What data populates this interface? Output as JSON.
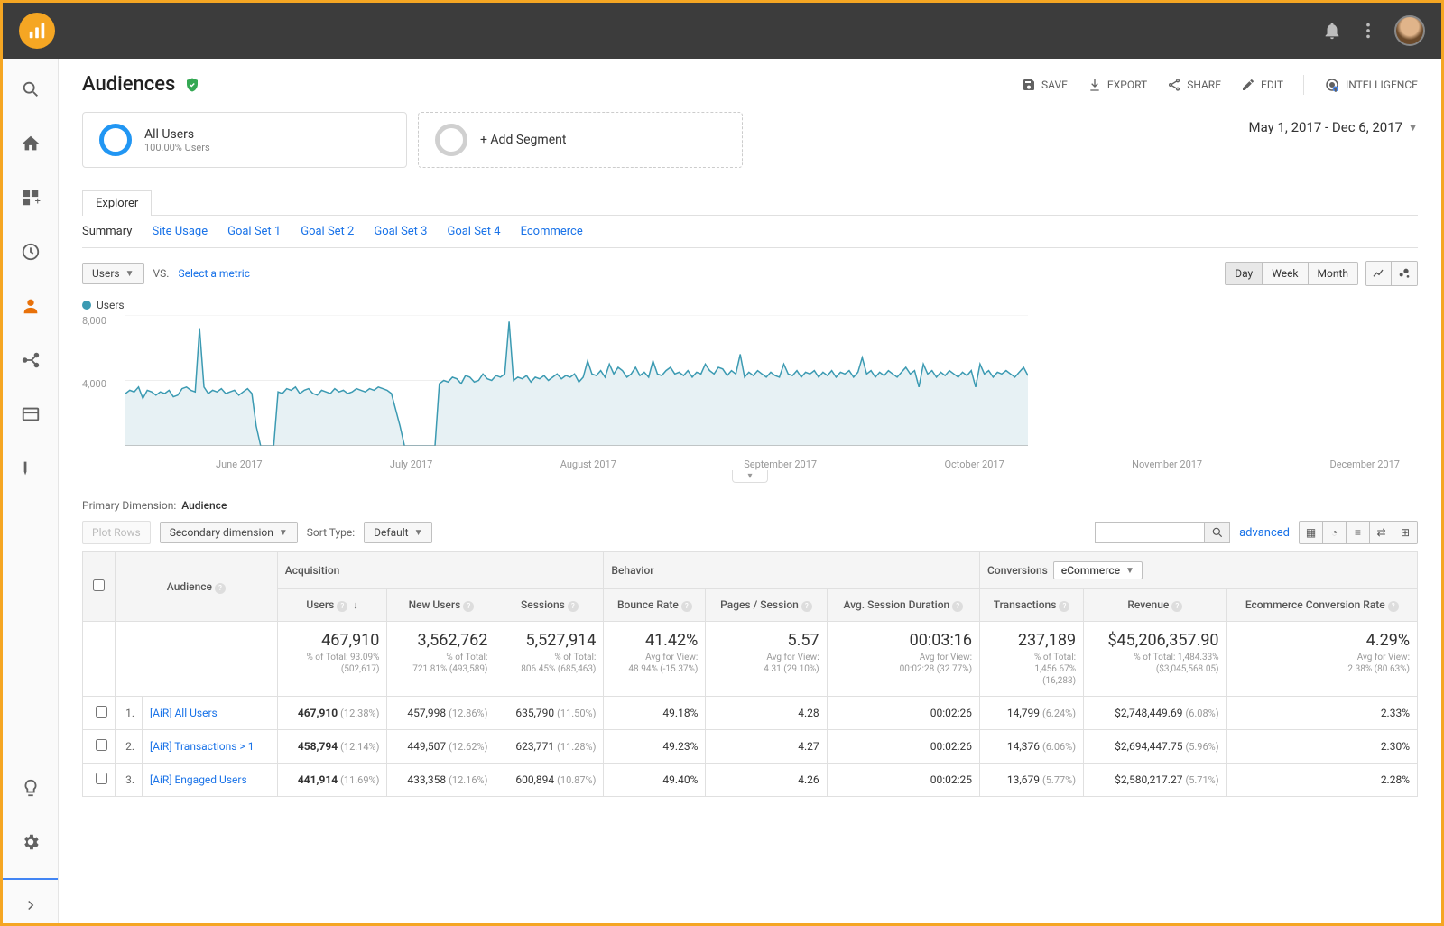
{
  "topbar": {
    "notifications_icon": "bell-icon",
    "menu_icon": "kebab-icon",
    "avatar": "user-avatar"
  },
  "page": {
    "title": "Audiences",
    "date_range": "May 1, 2017 - Dec 6, 2017"
  },
  "actions": {
    "save": "SAVE",
    "export": "EXPORT",
    "share": "SHARE",
    "edit": "EDIT",
    "intelligence": "INTELLIGENCE"
  },
  "segments": {
    "primary": {
      "title": "All Users",
      "sub": "100.00% Users"
    },
    "add": "+ Add Segment"
  },
  "tabs": {
    "explorer": "Explorer"
  },
  "subtabs": [
    "Summary",
    "Site Usage",
    "Goal Set 1",
    "Goal Set 2",
    "Goal Set 3",
    "Goal Set 4",
    "Ecommerce"
  ],
  "metric_bar": {
    "primary_metric": "Users",
    "vs": "VS.",
    "select_metric": "Select a metric",
    "periods": [
      "Day",
      "Week",
      "Month"
    ]
  },
  "chart": {
    "legend": "Users",
    "color": "#3b9ab2",
    "fill": "#e7f1f4",
    "y_ticks": [
      "8,000",
      "4,000"
    ],
    "y_max": 8000,
    "x_labels": [
      "June 2017",
      "July 2017",
      "August 2017",
      "September 2017",
      "October 2017",
      "November 2017",
      "December 2017"
    ],
    "values": [
      3200,
      3400,
      3300,
      3600,
      2900,
      3400,
      3300,
      3100,
      3300,
      3200,
      3400,
      3000,
      3100,
      3500,
      3600,
      3400,
      3300,
      7200,
      3600,
      3200,
      3400,
      3300,
      3500,
      3200,
      3300,
      3400,
      3100,
      3300,
      3500,
      3200,
      1200,
      0,
      0,
      0,
      0,
      3300,
      3200,
      3500,
      3400,
      3600,
      3200,
      3400,
      3500,
      3200,
      3100,
      3400,
      3300,
      3200,
      3500,
      3300,
      3400,
      3200,
      3300,
      3500,
      3400,
      3300,
      3500,
      3400,
      3600,
      3500,
      3400,
      3200,
      2200,
      1200,
      0,
      0,
      0,
      0,
      0,
      0,
      0,
      0,
      3800,
      4000,
      3900,
      4200,
      4100,
      3800,
      4300,
      4200,
      3900,
      4000,
      4400,
      4100,
      4000,
      4300,
      4200,
      4400,
      7600,
      4000,
      4200,
      4100,
      4300,
      3900,
      4200,
      4100,
      4300,
      4000,
      4200,
      4400,
      4100,
      4300,
      4200,
      4400,
      3900,
      4200,
      5200,
      4400,
      4300,
      4600,
      4200,
      5000,
      4400,
      4800,
      4600,
      4200,
      4400,
      4800,
      4300,
      4500,
      4200,
      5200,
      4400,
      4300,
      4600,
      4800,
      4400,
      4500,
      4300,
      4600,
      4200,
      4500,
      4400,
      5000,
      4600,
      4400,
      4800,
      4700,
      4300,
      4600,
      4400,
      5600,
      4200,
      4500,
      4300,
      4600,
      4400,
      4200,
      4500,
      4300,
      4200,
      5000,
      4400,
      4300,
      4600,
      4200,
      4500,
      4400,
      4600,
      4200,
      4500,
      4300,
      4600,
      4200,
      4500,
      4400,
      4600,
      4200,
      4500,
      5400,
      4400,
      4600,
      4200,
      4500,
      4300,
      4600,
      4400,
      4200,
      4500,
      4800,
      4400,
      4600,
      3600,
      5000,
      4400,
      4600,
      4200,
      4500,
      4300,
      4600,
      4400,
      4200,
      4500,
      4300,
      4600,
      3600,
      5000,
      4400,
      4600,
      4200,
      4500,
      4400,
      4600,
      4400,
      4200,
      4500,
      4800,
      4300
    ]
  },
  "primary_dimension": {
    "label": "Primary Dimension:",
    "value": "Audience"
  },
  "table_toolbar": {
    "plot_rows": "Plot Rows",
    "secondary": "Secondary dimension",
    "sort_type": "Sort Type:",
    "sort_default": "Default",
    "advanced": "advanced"
  },
  "table": {
    "groups": {
      "acquisition": "Acquisition",
      "behavior": "Behavior",
      "conversions": "Conversions",
      "conversions_select": "eCommerce"
    },
    "audience_col": "Audience",
    "cols": [
      "Users",
      "New Users",
      "Sessions",
      "Bounce Rate",
      "Pages / Session",
      "Avg. Session Duration",
      "Transactions",
      "Revenue",
      "Ecommerce Conversion Rate"
    ],
    "totals": {
      "users": {
        "big": "467,910",
        "sub1": "% of Total: 93.09%",
        "sub2": "(502,617)"
      },
      "new_users": {
        "big": "3,562,762",
        "sub1": "% of Total:",
        "sub2": "721.81% (493,589)"
      },
      "sessions": {
        "big": "5,527,914",
        "sub1": "% of Total:",
        "sub2": "806.45% (685,463)"
      },
      "bounce": {
        "big": "41.42%",
        "sub1": "Avg for View:",
        "sub2": "48.94% (-15.37%)"
      },
      "pps": {
        "big": "5.57",
        "sub1": "Avg for View:",
        "sub2": "4.31 (29.10%)"
      },
      "asd": {
        "big": "00:03:16",
        "sub1": "Avg for View:",
        "sub2": "00:02:28 (32.77%)"
      },
      "trans": {
        "big": "237,189",
        "sub1": "% of Total:",
        "sub2": "1,456.67%",
        "sub3": "(16,283)"
      },
      "revenue": {
        "big": "$45,206,357.90",
        "sub1": "% of Total: 1,484.33%",
        "sub2": "($3,045,568.05)"
      },
      "ecr": {
        "big": "4.29%",
        "sub1": "Avg for View:",
        "sub2": "2.38% (80.63%)"
      }
    },
    "rows": [
      {
        "idx": "1.",
        "name": "[AiR] All Users",
        "users": "467,910",
        "users_pct": "(12.38%)",
        "new_users": "457,998",
        "new_users_pct": "(12.86%)",
        "sessions": "635,790",
        "sessions_pct": "(11.50%)",
        "bounce": "49.18%",
        "pps": "4.28",
        "asd": "00:02:26",
        "trans": "14,799",
        "trans_pct": "(6.24%)",
        "revenue": "$2,748,449.69",
        "revenue_pct": "(6.08%)",
        "ecr": "2.33%"
      },
      {
        "idx": "2.",
        "name": "[AiR] Transactions > 1",
        "users": "458,794",
        "users_pct": "(12.14%)",
        "new_users": "449,507",
        "new_users_pct": "(12.62%)",
        "sessions": "623,771",
        "sessions_pct": "(11.28%)",
        "bounce": "49.23%",
        "pps": "4.27",
        "asd": "00:02:26",
        "trans": "14,376",
        "trans_pct": "(6.06%)",
        "revenue": "$2,694,447.75",
        "revenue_pct": "(5.96%)",
        "ecr": "2.30%"
      },
      {
        "idx": "3.",
        "name": "[AiR] Engaged Users",
        "users": "441,914",
        "users_pct": "(11.69%)",
        "new_users": "433,358",
        "new_users_pct": "(12.16%)",
        "sessions": "600,894",
        "sessions_pct": "(10.87%)",
        "bounce": "49.40%",
        "pps": "4.26",
        "asd": "00:02:25",
        "trans": "13,679",
        "trans_pct": "(5.77%)",
        "revenue": "$2,580,217.27",
        "revenue_pct": "(5.71%)",
        "ecr": "2.28%"
      }
    ]
  }
}
